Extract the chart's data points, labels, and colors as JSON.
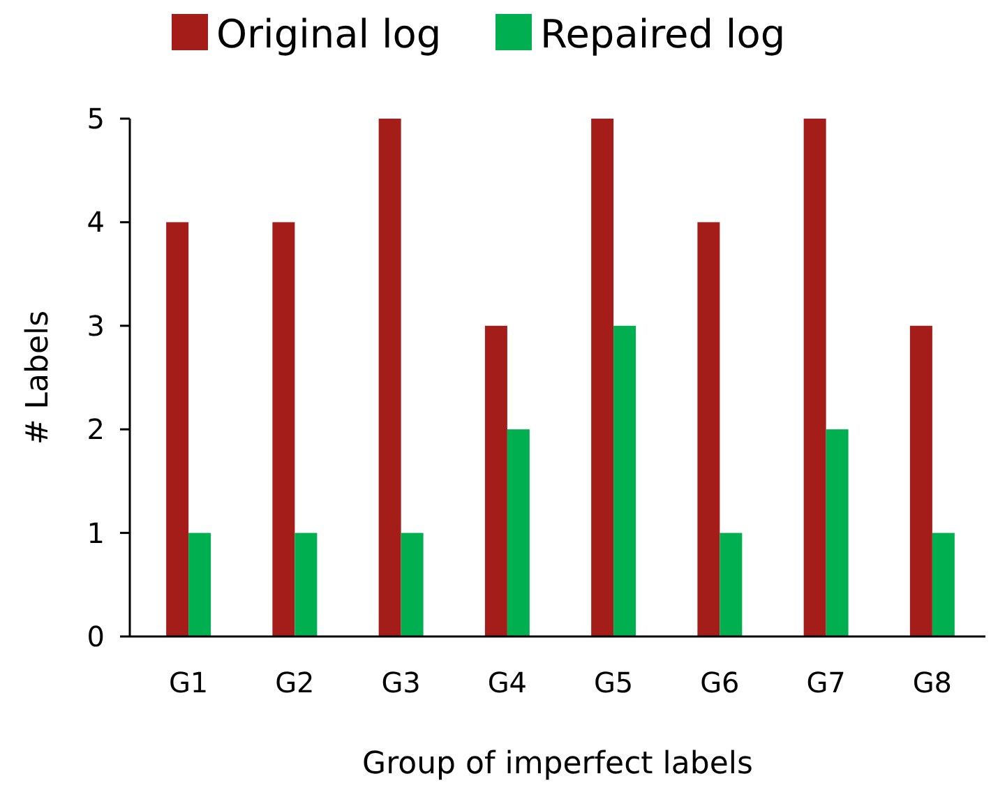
{
  "chart_data": {
    "type": "bar",
    "xlabel": "Group of imperfect labels",
    "ylabel": "# Labels",
    "categories": [
      "G1",
      "G2",
      "G3",
      "G4",
      "G5",
      "G6",
      "G7",
      "G8"
    ],
    "series": [
      {
        "name": "Original log",
        "color": "#a51d18",
        "values": [
          4,
          4,
          5,
          3,
          5,
          4,
          5,
          3
        ]
      },
      {
        "name": "Repaired log",
        "color": "#00b050",
        "values": [
          1,
          1,
          1,
          2,
          3,
          1,
          2,
          1
        ]
      }
    ],
    "ylim": [
      0,
      5
    ],
    "yticks": [
      0,
      1,
      2,
      3,
      4,
      5
    ],
    "grid": false,
    "legend": "top"
  }
}
